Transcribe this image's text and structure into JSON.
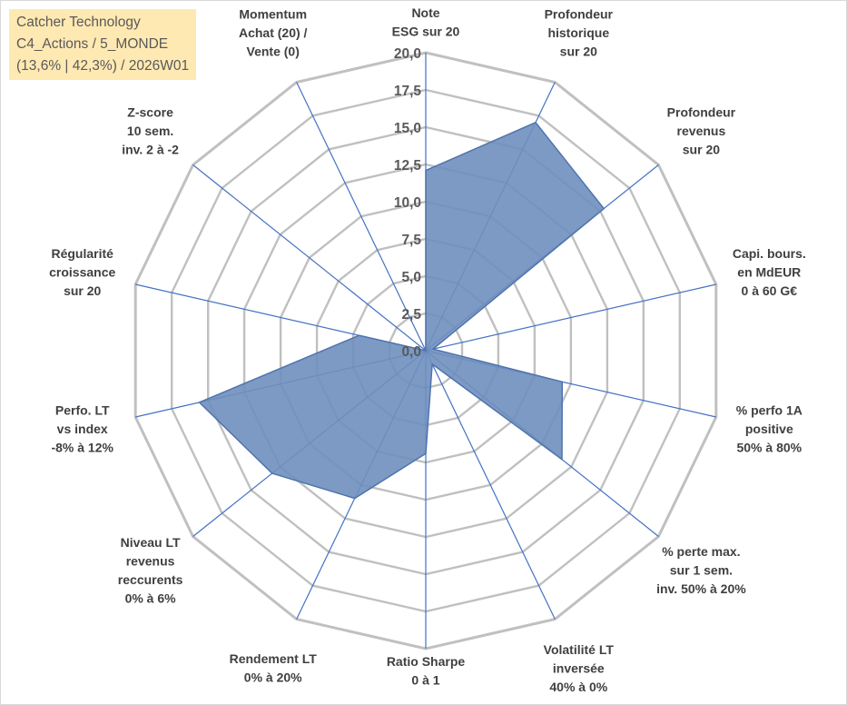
{
  "header": {
    "line1": "Catcher Technology",
    "line2": "C4_Actions / 5_MONDE",
    "line3": "(13,6% | 42,3%) / 2026W01"
  },
  "chart_data": {
    "type": "radar",
    "rmax": 20,
    "ticks": [
      "0,0",
      "2,5",
      "5,0",
      "7,5",
      "10,0",
      "12,5",
      "15,0",
      "17,5",
      "20,0"
    ],
    "axes": [
      {
        "label": [
          "Note",
          "ESG sur 20"
        ]
      },
      {
        "label": [
          "Profondeur",
          "historique",
          "sur 20"
        ]
      },
      {
        "label": [
          "Profondeur",
          "revenus",
          "sur 20"
        ]
      },
      {
        "label": [
          "Capi. bours.",
          "en MdEUR",
          "0 à 60 G€"
        ]
      },
      {
        "label": [
          "% perfo 1A",
          "positive",
          "50% à 80%"
        ]
      },
      {
        "label": [
          "% perte max.",
          "sur 1 sem.",
          "inv. 50% à 20%"
        ]
      },
      {
        "label": [
          "Volatilité LT",
          "inversée",
          "40% à 0%"
        ]
      },
      {
        "label": [
          "Ratio Sharpe",
          "0 à 1"
        ]
      },
      {
        "label": [
          "Rendement LT",
          "0% à 20%"
        ]
      },
      {
        "label": [
          "Niveau LT",
          "revenus",
          "reccurents",
          "0% à 6%"
        ]
      },
      {
        "label": [
          "Perfo. LT",
          "vs index",
          "-8% à 12%"
        ]
      },
      {
        "label": [
          "Régularité",
          "croissance",
          "sur 20"
        ]
      },
      {
        "label": [
          "Z-score",
          "10 sem.",
          "inv. 2 à -2"
        ]
      },
      {
        "label": [
          "Momentum",
          "Achat (20) /",
          "Vente (0)"
        ]
      }
    ],
    "series": [
      {
        "values": [
          12.1,
          17.0,
          15.3,
          0.5,
          9.4,
          11.7,
          1.0,
          6.9,
          11.0,
          13.2,
          15.6,
          4.6,
          0.0,
          0.0
        ]
      }
    ],
    "colors": {
      "fill": "#6f8fbe",
      "stroke": "#4f73ae",
      "grid": "#c0c0c0",
      "spoke": "#4472c4",
      "text": "#404040",
      "box": "#ffe9b3"
    }
  }
}
